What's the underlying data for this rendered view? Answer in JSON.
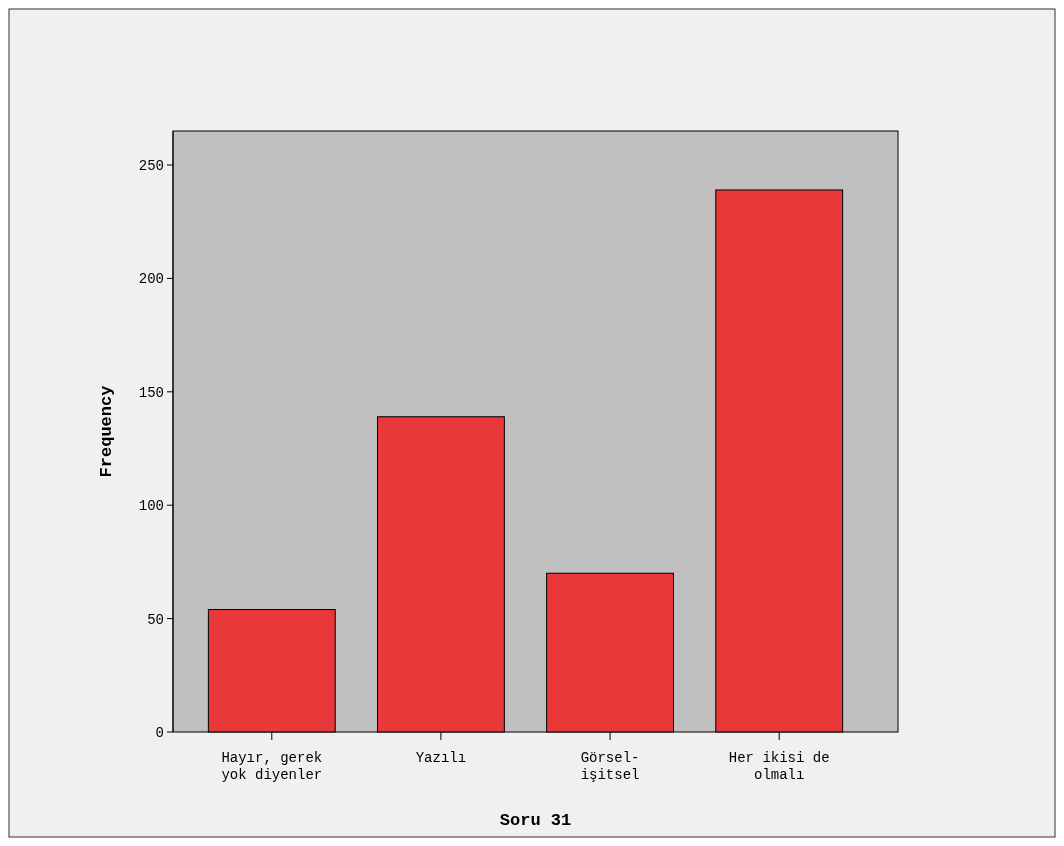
{
  "chart_data": {
    "type": "bar",
    "xlabel": "Soru 31",
    "ylabel": "Frequency",
    "categories": [
      "Hayır, gerek yok diyenler",
      "Yazılı",
      "Görsel-işitsel",
      "Her ikisi de olmalı"
    ],
    "values": [
      54,
      139,
      70,
      239
    ],
    "color": "#e8383a",
    "ylim": [
      0,
      265
    ],
    "yticks": [
      0,
      50,
      100,
      150,
      200,
      250
    ],
    "grid": false
  }
}
